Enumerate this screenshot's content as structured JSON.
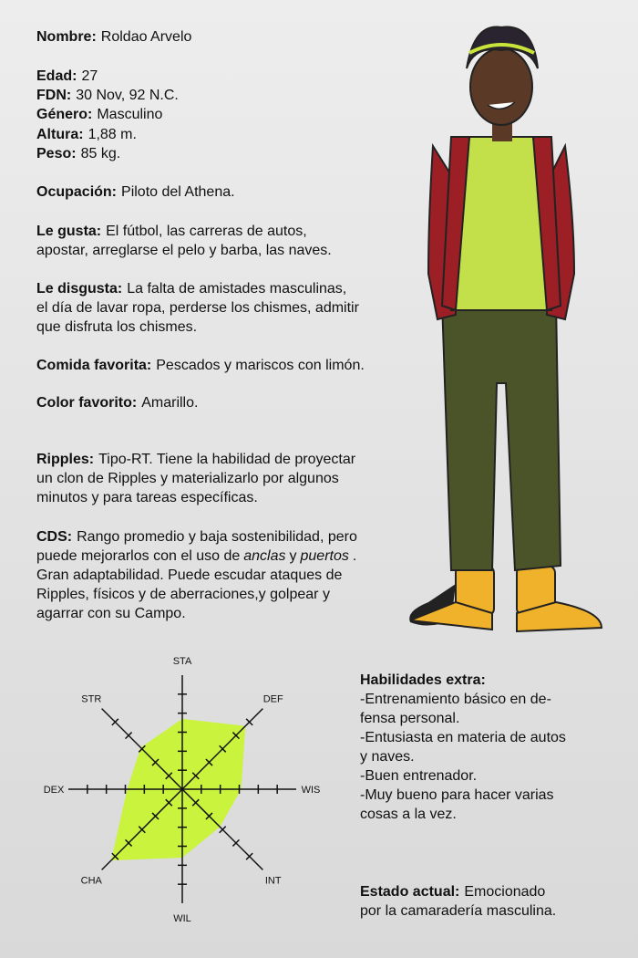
{
  "profile": [
    {
      "label": "Nombre:",
      "lines": [
        "Roldao Arvelo"
      ]
    },
    {
      "label": "Edad:",
      "lines": [
        "27"
      ]
    },
    {
      "label": "FDN:",
      "lines": [
        "30 Nov, 92 N.C."
      ]
    },
    {
      "label": "Género:",
      "lines": [
        "Masculino"
      ]
    },
    {
      "label": "Altura:",
      "lines": [
        "1,88 m."
      ]
    },
    {
      "label": "Peso:",
      "lines": [
        "85 kg."
      ]
    },
    {
      "label": "Ocupación:",
      "lines": [
        "Piloto del Athena."
      ]
    },
    {
      "label": "Le gusta:",
      "lines": [
        "El fútbol, las carreras de autos,",
        "apostar, arreglarse el pelo y barba, las naves."
      ]
    },
    {
      "label": "Le disgusta:",
      "lines": [
        "La falta de amistades masculinas,",
        "el día de lavar ropa, perderse los chismes, admitir",
        "que disfruta los chismes."
      ]
    },
    {
      "label": "Comida favorita:",
      "lines": [
        "Pescados y mariscos con limón."
      ]
    },
    {
      "label": "Color favorito:",
      "lines": [
        "Amarillo."
      ]
    },
    {
      "label": "Ripples:",
      "lines": [
        "Tipo-RT. Tiene la habilidad de proyectar",
        "un clon de Ripples y materializarlo por algunos",
        "minutos y para tareas específicas."
      ]
    },
    {
      "label": "CDS:",
      "lines": [
        "Rango promedio y baja sostenibilidad, pero",
        [
          {
            "text": "puede mejorarlos con el uso de"
          },
          {
            "text": "anclas",
            "italic": true
          },
          {
            "text": "y"
          },
          {
            "text": "puertos",
            "italic": true
          },
          {
            "text": "."
          }
        ],
        "Gran adaptabilidad. Puede escudar ataques de",
        "Ripples, físicos y de aberraciones,y golpear y",
        "agarrar con su Campo."
      ]
    }
  ],
  "extra": {
    "title": "Habilidades extra:",
    "lines": [
      "-Entrenamiento básico en de-",
      "fensa personal.",
      "-Entusiasta  en materia de autos",
      "y naves.",
      "-Buen entrenador.",
      "-Muy bueno para hacer varias",
      "cosas a la vez."
    ]
  },
  "status": {
    "label": "Estado actual:",
    "lines": [
      "Emocionado",
      "por la camaradería masculina."
    ]
  },
  "chart_data": {
    "type": "radar",
    "categories": [
      "STA",
      "DEF",
      "WIS",
      "INT",
      "WIL",
      "CHA",
      "DEX",
      "STR"
    ],
    "values": [
      3.7,
      4.7,
      3.1,
      2.8,
      3.6,
      5.3,
      2.9,
      3.1
    ],
    "color": "#c6f52a",
    "rlim": [
      0,
      6
    ],
    "rticks": [
      1,
      2,
      3,
      4,
      5
    ]
  }
}
